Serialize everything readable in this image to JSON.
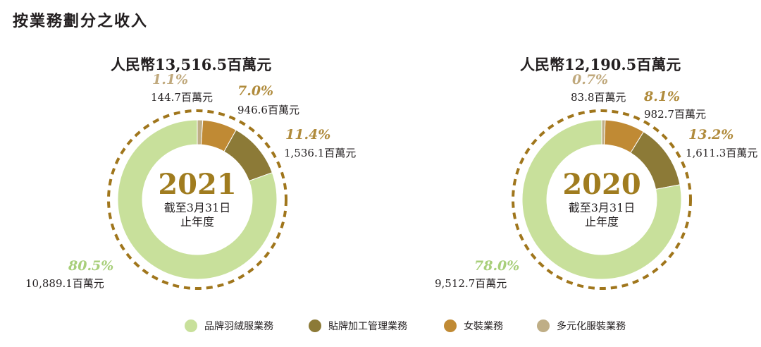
{
  "page": {
    "title": "按業務劃分之收入"
  },
  "colors": {
    "branded_down": "#c8e09b",
    "oem": "#8c7a37",
    "ladies": "#c08a34",
    "diversified": "#bfae86",
    "dashed_ring": "#a0761c",
    "year_text": "#a07c1f",
    "pct_green": "#a8cf7a",
    "pct_gold": "#b08b3c",
    "pct_tan": "#c0a97d"
  },
  "legend": [
    {
      "label": "品牌羽絨服業務",
      "color": "#c8e09b"
    },
    {
      "label": "貼牌加工管理業務",
      "color": "#8c7a37"
    },
    {
      "label": "女裝業務",
      "color": "#c08a34"
    },
    {
      "label": "多元化服裝業務",
      "color": "#bfae86"
    }
  ],
  "chart_data": [
    {
      "type": "pie",
      "title": "人民幣13,516.5百萬元",
      "center_year": "2021",
      "center_sub1": "截至3月31日",
      "center_sub2": "止年度",
      "slices": [
        {
          "name": "品牌羽絨服業務",
          "percent": 80.5,
          "percent_label": "80.5%",
          "value": 10889.1,
          "value_label": "10,889.1百萬元"
        },
        {
          "name": "貼牌加工管理業務",
          "percent": 11.4,
          "percent_label": "11.4%",
          "value": 1536.1,
          "value_label": "1,536.1百萬元"
        },
        {
          "name": "女裝業務",
          "percent": 7.0,
          "percent_label": "7.0%",
          "value": 946.6,
          "value_label": "946.6百萬元"
        },
        {
          "name": "多元化服裝業務",
          "percent": 1.1,
          "percent_label": "1.1%",
          "value": 144.7,
          "value_label": "144.7百萬元"
        }
      ]
    },
    {
      "type": "pie",
      "title": "人民幣12,190.5百萬元",
      "center_year": "2020",
      "center_sub1": "截至3月31日",
      "center_sub2": "止年度",
      "slices": [
        {
          "name": "品牌羽絨服業務",
          "percent": 78.0,
          "percent_label": "78.0%",
          "value": 9512.7,
          "value_label": "9,512.7百萬元"
        },
        {
          "name": "貼牌加工管理業務",
          "percent": 13.2,
          "percent_label": "13.2%",
          "value": 1611.3,
          "value_label": "1,611.3百萬元"
        },
        {
          "name": "女裝業務",
          "percent": 8.1,
          "percent_label": "8.1%",
          "value": 982.7,
          "value_label": "982.7百萬元"
        },
        {
          "name": "多元化服裝業務",
          "percent": 0.7,
          "percent_label": "0.7%",
          "value": 83.8,
          "value_label": "83.8百萬元"
        }
      ]
    }
  ]
}
